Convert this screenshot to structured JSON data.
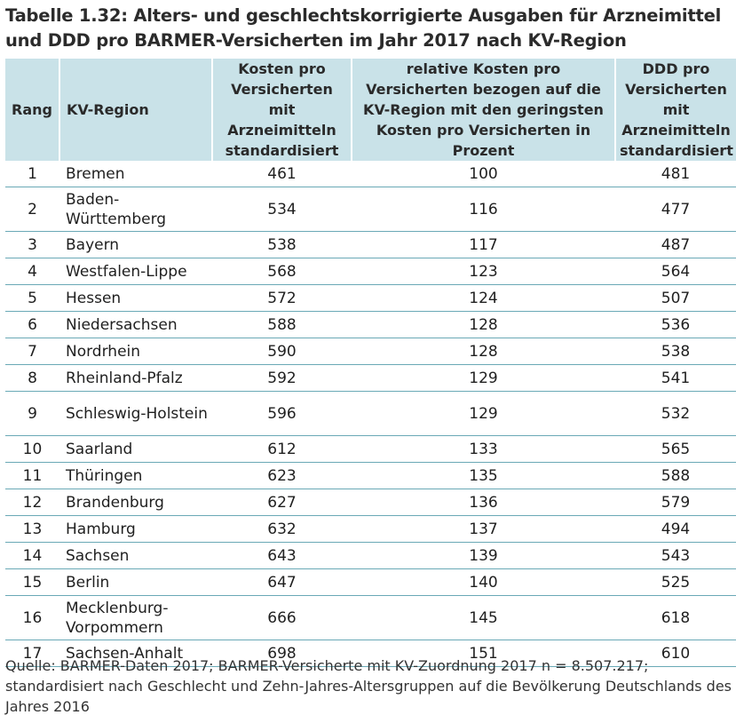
{
  "title": "Tabelle 1.32: Alters- und geschlechtskorrigierte Ausgaben für Arzneimittel und DDD pro BARMER-Versicherten im Jahr 2017 nach KV-Region",
  "columns": {
    "rang": "Rang",
    "region": "KV-Region",
    "kosten": "Kosten pro Versicherten mit Arzneimitteln standardisiert",
    "relativ": "relative Kosten pro Versicherten bezogen auf die KV-Region mit den geringsten Kosten pro Versicherten in Prozent",
    "ddd": "DDD pro Versicherten mit Arzneimitteln standardisiert"
  },
  "rows": [
    {
      "rang": "1",
      "region": "Bremen",
      "kosten": "461",
      "relativ": "100",
      "ddd": "481"
    },
    {
      "rang": "2",
      "region": "Baden-Württemberg",
      "kosten": "534",
      "relativ": "116",
      "ddd": "477"
    },
    {
      "rang": "3",
      "region": "Bayern",
      "kosten": "538",
      "relativ": "117",
      "ddd": "487"
    },
    {
      "rang": "4",
      "region": "Westfalen-Lippe",
      "kosten": "568",
      "relativ": "123",
      "ddd": "564"
    },
    {
      "rang": "5",
      "region": "Hessen",
      "kosten": "572",
      "relativ": "124",
      "ddd": "507"
    },
    {
      "rang": "6",
      "region": "Niedersachsen",
      "kosten": "588",
      "relativ": "128",
      "ddd": "536"
    },
    {
      "rang": "7",
      "region": "Nordrhein",
      "kosten": "590",
      "relativ": "128",
      "ddd": "538"
    },
    {
      "rang": "8",
      "region": "Rheinland-Pfalz",
      "kosten": "592",
      "relativ": "129",
      "ddd": "541"
    },
    {
      "rang": "9",
      "region": "Schleswig-Holstein",
      "kosten": "596",
      "relativ": "129",
      "ddd": "532"
    },
    {
      "rang": "10",
      "region": "Saarland",
      "kosten": "612",
      "relativ": "133",
      "ddd": "565"
    },
    {
      "rang": "11",
      "region": "Thüringen",
      "kosten": "623",
      "relativ": "135",
      "ddd": "588"
    },
    {
      "rang": "12",
      "region": "Brandenburg",
      "kosten": "627",
      "relativ": "136",
      "ddd": "579"
    },
    {
      "rang": "13",
      "region": "Hamburg",
      "kosten": "632",
      "relativ": "137",
      "ddd": "494"
    },
    {
      "rang": "14",
      "region": "Sachsen",
      "kosten": "643",
      "relativ": "139",
      "ddd": "543"
    },
    {
      "rang": "15",
      "region": "Berlin",
      "kosten": "647",
      "relativ": "140",
      "ddd": "525"
    },
    {
      "rang": "16",
      "region": "Mecklenburg-Vorpommern",
      "kosten": "666",
      "relativ": "145",
      "ddd": "618"
    },
    {
      "rang": "17",
      "region": "Sachsen-Anhalt",
      "kosten": "698",
      "relativ": "151",
      "ddd": "610"
    }
  ],
  "source": "Quelle: BARMER-Daten 2017; BARMER-Versicherte mit KV-Zuordnung 2017 n = 8.507.217; standardisiert nach Geschlecht und Zehn-Jahres-Altersgruppen auf die Bevölkerung Deutschlands des Jahres 2016"
}
